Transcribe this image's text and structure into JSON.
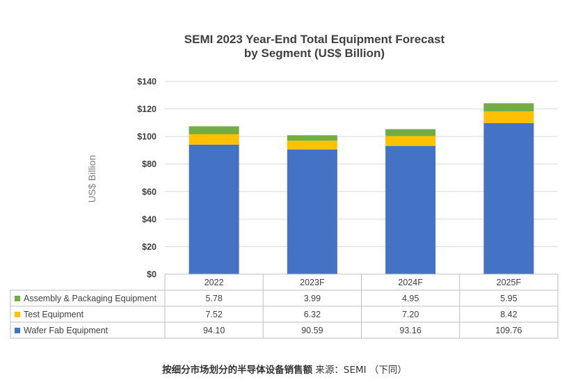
{
  "chart_data": {
    "type": "bar",
    "stacked": true,
    "title_lines": [
      "SEMI 2023 Year-End Total Equipment Forecast",
      "by Segment (US$ Billion)"
    ],
    "ylabel": "US$ Billion",
    "xlabel": "",
    "ylim": [
      0,
      140
    ],
    "yticks": [
      0,
      20,
      40,
      60,
      80,
      100,
      120,
      140
    ],
    "ytick_labels": [
      "$0",
      "$20",
      "$40",
      "$60",
      "$80",
      "$100",
      "$120",
      "$140"
    ],
    "grid": true,
    "categories": [
      "2022",
      "2023F",
      "2024F",
      "2025F"
    ],
    "series": [
      {
        "name": "Wafer Fab Equipment",
        "color": "#4472c4",
        "values": [
          94.1,
          90.59,
          93.16,
          109.76
        ],
        "labels": [
          "94.10",
          "90.59",
          "93.16",
          "109.76"
        ]
      },
      {
        "name": "Test Equipment",
        "color": "#ffc000",
        "values": [
          7.52,
          6.32,
          7.2,
          8.42
        ],
        "labels": [
          "7.52",
          "6.32",
          "7.20",
          "8.42"
        ]
      },
      {
        "name": "Assembly & Packaging Equipment",
        "color": "#70ad47",
        "values": [
          5.78,
          3.99,
          4.95,
          5.95
        ],
        "labels": [
          "5.78",
          "3.99",
          "4.95",
          "5.95"
        ]
      }
    ],
    "table_row_order": [
      2,
      1,
      0
    ]
  },
  "caption": {
    "bold": "按细分市场划分的半导体设备销售额",
    "normal": " 来源：SEMI （下同）"
  }
}
